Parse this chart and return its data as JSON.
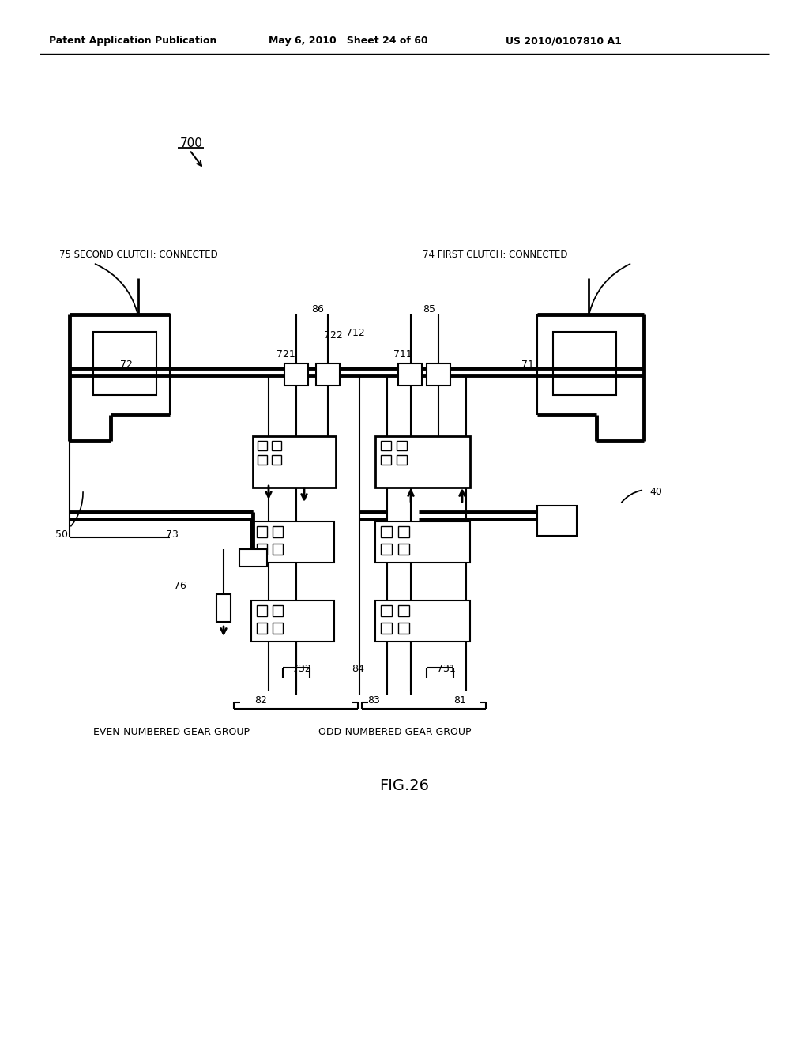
{
  "title": "FIG.26",
  "header_left": "Patent Application Publication",
  "header_mid": "May 6, 2010   Sheet 24 of 60",
  "header_right": "US 2010/0107810 A1",
  "fig_label": "700",
  "label_75": "75 SECOND CLUTCH: CONNECTED",
  "label_74": "74 FIRST CLUTCH: CONNECTED",
  "label_40": "40",
  "label_50": "50",
  "label_72": "72",
  "label_71": "71",
  "label_73": "73",
  "label_76": "76",
  "label_86": "86",
  "label_85": "85",
  "label_721": "721",
  "label_711": "711",
  "label_722": "722",
  "label_712": "712",
  "label_732": "732",
  "label_731": "731",
  "label_82": "82",
  "label_81": "81",
  "label_84": "84",
  "label_83": "83",
  "label_even": "EVEN-NUMBERED GEAR GROUP",
  "label_odd": "ODD-NUMBERED GEAR GROUP",
  "bg_color": "#ffffff",
  "line_color": "#000000"
}
